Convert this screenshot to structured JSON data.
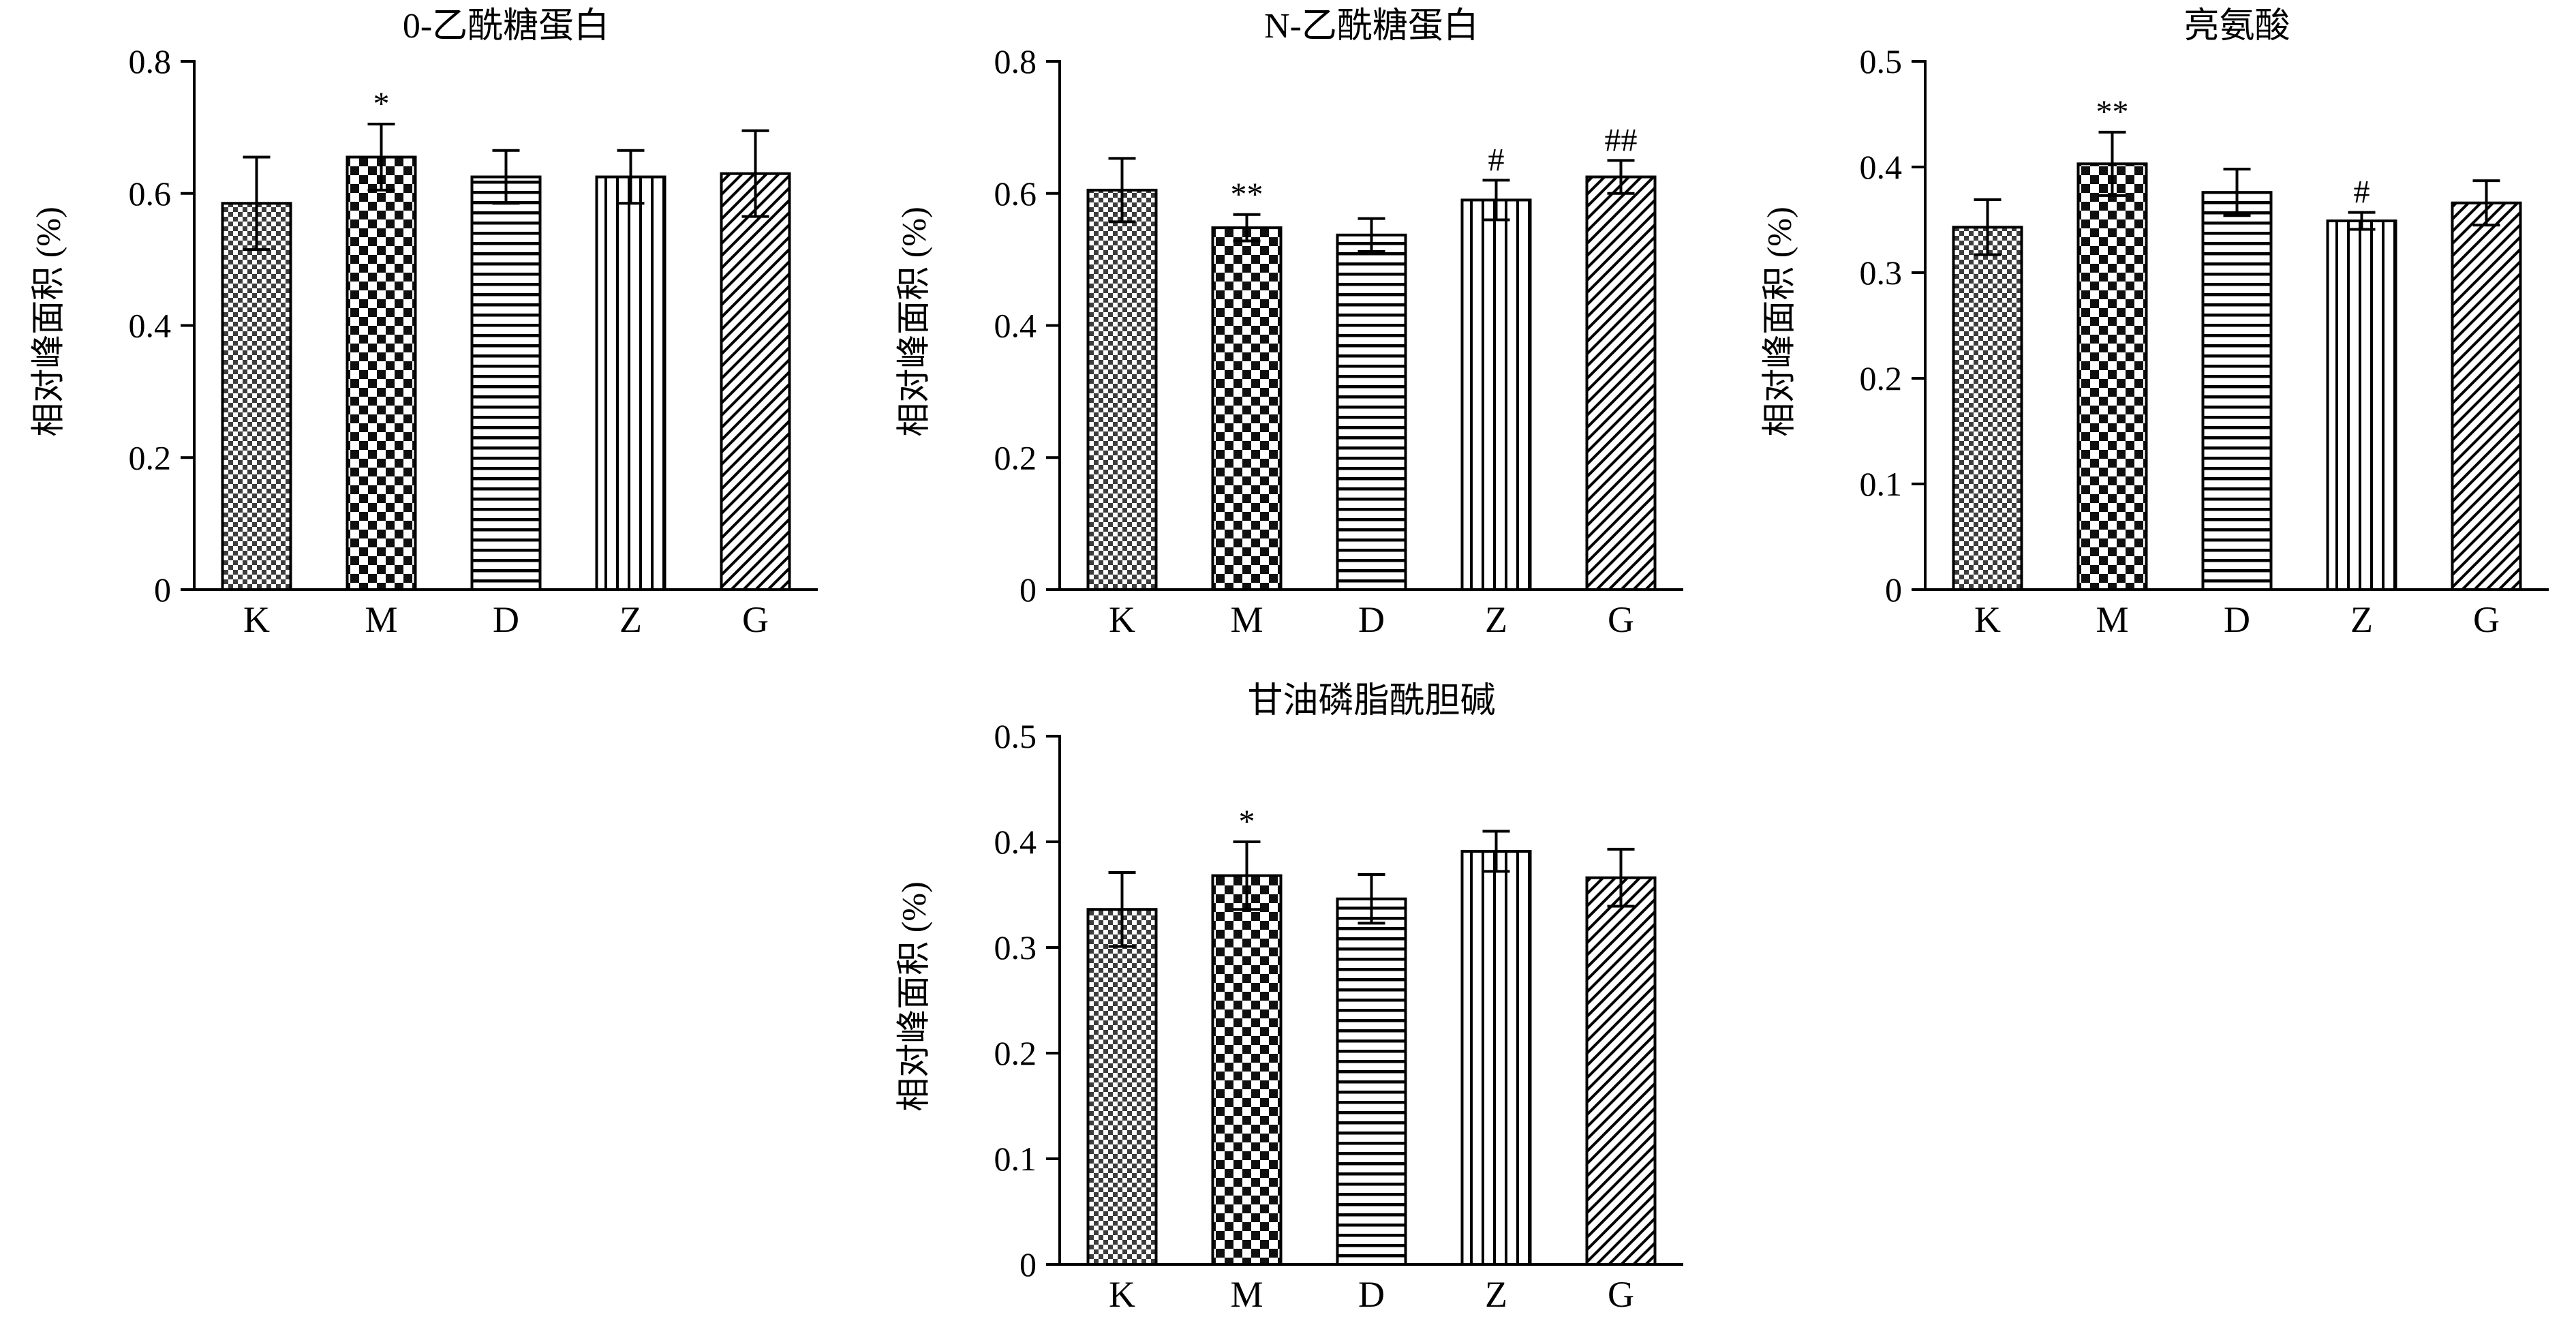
{
  "figure": {
    "background": "#ffffff",
    "axis_color": "#000000",
    "bar_outline_color": "#000000"
  },
  "patterns": [
    {
      "category": "K",
      "name": "fine-checker"
    },
    {
      "category": "M",
      "name": "checker"
    },
    {
      "category": "D",
      "name": "hlines"
    },
    {
      "category": "Z",
      "name": "vlines"
    },
    {
      "category": "G",
      "name": "diag"
    }
  ],
  "chart_data": [
    {
      "type": "bar",
      "title": "0-乙酰糖蛋白",
      "ylabel": "相对峰面积 (%)",
      "categories": [
        "K",
        "M",
        "D",
        "Z",
        "G"
      ],
      "values": [
        0.585,
        0.655,
        0.625,
        0.625,
        0.63
      ],
      "errors": [
        0.07,
        0.05,
        0.04,
        0.04,
        0.065
      ],
      "annotations": [
        "",
        "*",
        "",
        "",
        ""
      ],
      "ylim": [
        0,
        0.8
      ],
      "yticks": [
        "0",
        "0.2",
        "0.4",
        "0.6",
        "0.8"
      ],
      "grid": false,
      "legend": "none"
    },
    {
      "type": "bar",
      "title": "N-乙酰糖蛋白",
      "ylabel": "相对峰面积 (%)",
      "categories": [
        "K",
        "M",
        "D",
        "Z",
        "G"
      ],
      "values": [
        0.605,
        0.548,
        0.537,
        0.59,
        0.625
      ],
      "errors": [
        0.048,
        0.02,
        0.025,
        0.03,
        0.025
      ],
      "annotations": [
        "",
        "**",
        "",
        "#",
        "##"
      ],
      "ylim": [
        0,
        0.8
      ],
      "yticks": [
        "0",
        "0.2",
        "0.4",
        "0.6",
        "0.8"
      ],
      "grid": false,
      "legend": "none"
    },
    {
      "type": "bar",
      "title": "亮氨酸",
      "ylabel": "相对峰面积 (%)",
      "categories": [
        "K",
        "M",
        "D",
        "Z",
        "G"
      ],
      "values": [
        0.343,
        0.403,
        0.376,
        0.349,
        0.366
      ],
      "errors": [
        0.026,
        0.03,
        0.022,
        0.008,
        0.021
      ],
      "annotations": [
        "",
        "**",
        "",
        "#",
        ""
      ],
      "ylim": [
        0,
        0.5
      ],
      "yticks": [
        "0",
        "0.1",
        "0.2",
        "0.3",
        "0.4",
        "0.5"
      ],
      "grid": false,
      "legend": "none"
    },
    {
      "type": "bar",
      "title": "甘油磷脂酰胆碱",
      "ylabel": "相对峰面积 (%)",
      "categories": [
        "K",
        "M",
        "D",
        "Z",
        "G"
      ],
      "values": [
        0.336,
        0.368,
        0.346,
        0.391,
        0.366
      ],
      "errors": [
        0.035,
        0.032,
        0.023,
        0.019,
        0.027
      ],
      "annotations": [
        "",
        "*",
        "",
        "",
        ""
      ],
      "ylim": [
        0,
        0.5
      ],
      "yticks": [
        "0",
        "0.1",
        "0.2",
        "0.3",
        "0.4",
        "0.5"
      ],
      "grid": false,
      "legend": "none"
    }
  ]
}
